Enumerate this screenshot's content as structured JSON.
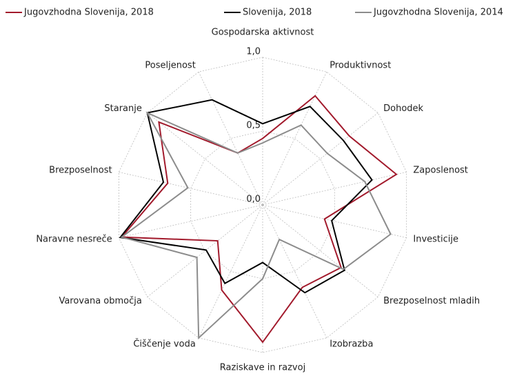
{
  "chart_data": {
    "type": "radar",
    "categories": [
      "Gospodarska aktivnost",
      "Produktivnost",
      "Dohodek",
      "Zaposlenost",
      "Investicije",
      "Brezposelnost mladih",
      "Izobrazba",
      "Raziskave in razvoj",
      "Čiščenje voda",
      "Varovana območja",
      "Naravne nesreče",
      "Brezposelnost",
      "Staranje",
      "Poseljenost"
    ],
    "series": [
      {
        "name": "Jugovzhodna Slovenija, 2018",
        "color": "#a21a2c",
        "values": [
          0.45,
          0.82,
          0.75,
          0.93,
          0.43,
          0.68,
          0.62,
          0.93,
          0.64,
          0.39,
          0.98,
          0.66,
          0.9,
          0.39
        ]
      },
      {
        "name": "Slovenija, 2018",
        "color": "#000000",
        "values": [
          0.55,
          0.74,
          0.7,
          0.76,
          0.48,
          0.71,
          0.66,
          0.39,
          0.59,
          0.49,
          0.99,
          0.69,
          1.0,
          0.79
        ]
      },
      {
        "name": "Jugovzhodna Slovenija, 2014",
        "color": "#8c8c8c",
        "values": [
          0.42,
          0.6,
          0.56,
          0.71,
          0.89,
          0.7,
          0.26,
          0.5,
          1.0,
          0.57,
          0.98,
          0.52,
          1.0,
          0.39
        ]
      }
    ],
    "ylim": [
      0,
      1
    ],
    "yticks": [
      {
        "value": 0,
        "label": "0,0"
      },
      {
        "value": 0.5,
        "label": "0,5"
      },
      {
        "value": 1,
        "label": "1,0"
      }
    ],
    "grid": true
  }
}
